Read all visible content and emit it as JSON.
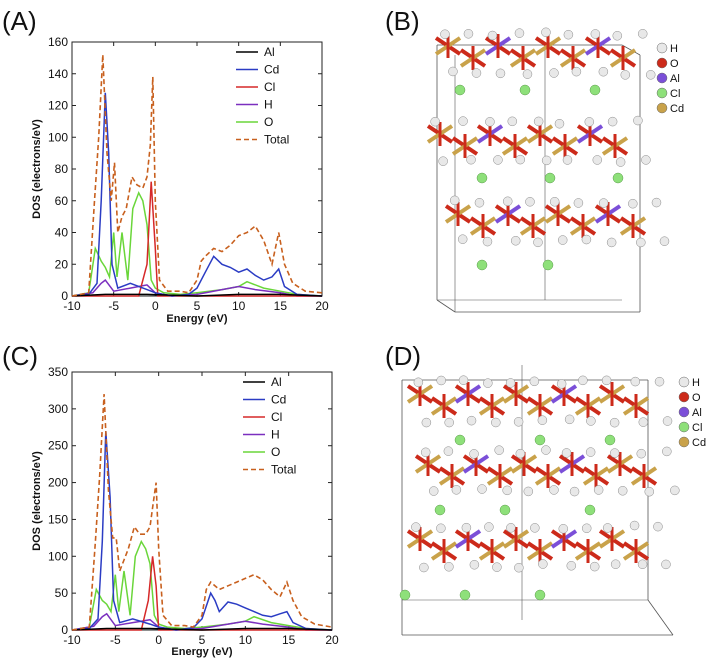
{
  "panel_labels": [
    "(A)",
    "(B)",
    "(C)",
    "(D)"
  ],
  "colors": {
    "Al": "#000000",
    "Cd": "#2b3cc4",
    "Cl": "#d62828",
    "H": "#7b2fbf",
    "O": "#6ad63a",
    "Total": "#c8601e",
    "atom_H": "#e8e8e8",
    "atom_O": "#cc2a1a",
    "atom_Al": "#7b4fd8",
    "atom_Cl": "#8ee07a",
    "atom_Cd": "#c9a24a"
  },
  "crystal_legend": [
    "H",
    "O",
    "Al",
    "Cl",
    "Cd"
  ],
  "chart_data": [
    {
      "panel": "(A)",
      "type": "line",
      "title": "",
      "xlabel": "Energy (eV)",
      "ylabel": "DOS (electrons/eV)",
      "xlim": [
        -10,
        20
      ],
      "ylim": [
        0,
        160
      ],
      "xticks": [
        -10,
        -5,
        0,
        5,
        10,
        15,
        20
      ],
      "yticks": [
        0,
        20,
        40,
        60,
        80,
        100,
        120,
        140,
        160
      ],
      "legend": [
        "Al",
        "Cd",
        "Cl",
        "H",
        "O",
        "Total"
      ],
      "series": [
        {
          "name": "Al",
          "points": [
            [
              -10,
              0
            ],
            [
              -6,
              1
            ],
            [
              -1,
              1
            ],
            [
              5,
              0
            ],
            [
              10,
              1
            ],
            [
              15,
              1
            ],
            [
              20,
              0
            ]
          ]
        },
        {
          "name": "Cd",
          "points": [
            [
              -10,
              0
            ],
            [
              -8,
              1
            ],
            [
              -7,
              8
            ],
            [
              -6.5,
              60
            ],
            [
              -6,
              128
            ],
            [
              -5.6,
              90
            ],
            [
              -5.2,
              20
            ],
            [
              -4.5,
              5
            ],
            [
              -3,
              8
            ],
            [
              -1,
              4
            ],
            [
              0,
              2
            ],
            [
              2,
              0
            ],
            [
              4,
              1
            ],
            [
              5,
              5
            ],
            [
              6,
              15
            ],
            [
              7,
              25
            ],
            [
              8,
              20
            ],
            [
              9,
              18
            ],
            [
              10,
              15
            ],
            [
              11,
              17
            ],
            [
              12,
              13
            ],
            [
              13,
              10
            ],
            [
              14,
              12
            ],
            [
              14.8,
              17
            ],
            [
              15.5,
              6
            ],
            [
              17,
              1
            ],
            [
              20,
              0
            ]
          ]
        },
        {
          "name": "Cl",
          "points": [
            [
              -10,
              0
            ],
            [
              -2,
              0
            ],
            [
              -1,
              20
            ],
            [
              -0.5,
              72
            ],
            [
              0,
              30
            ],
            [
              0.3,
              0
            ],
            [
              20,
              0
            ]
          ]
        },
        {
          "name": "H",
          "points": [
            [
              -10,
              0
            ],
            [
              -7.5,
              2
            ],
            [
              -6.5,
              8
            ],
            [
              -6,
              10
            ],
            [
              -5,
              3
            ],
            [
              -3,
              5
            ],
            [
              -2,
              6
            ],
            [
              -1,
              7
            ],
            [
              0,
              2
            ],
            [
              2,
              0
            ],
            [
              5,
              1
            ],
            [
              8,
              4
            ],
            [
              10,
              6
            ],
            [
              12,
              4
            ],
            [
              15,
              2
            ],
            [
              17,
              0
            ],
            [
              20,
              0
            ]
          ]
        },
        {
          "name": "O",
          "points": [
            [
              -10,
              0
            ],
            [
              -8,
              2
            ],
            [
              -7.2,
              30
            ],
            [
              -6.5,
              22
            ],
            [
              -6,
              18
            ],
            [
              -5.5,
              12
            ],
            [
              -5,
              40
            ],
            [
              -4.6,
              12
            ],
            [
              -4,
              40
            ],
            [
              -3.3,
              10
            ],
            [
              -2.7,
              55
            ],
            [
              -2,
              65
            ],
            [
              -1.5,
              60
            ],
            [
              -1,
              45
            ],
            [
              -0.5,
              10
            ],
            [
              0,
              5
            ],
            [
              1,
              2
            ],
            [
              3,
              1
            ],
            [
              5,
              2
            ],
            [
              8,
              4
            ],
            [
              10,
              6
            ],
            [
              11,
              9
            ],
            [
              13,
              5
            ],
            [
              15,
              3
            ],
            [
              17,
              1
            ],
            [
              20,
              0
            ]
          ]
        },
        {
          "name": "Total",
          "points": [
            [
              -10,
              0
            ],
            [
              -8,
              2
            ],
            [
              -7.3,
              60
            ],
            [
              -6.8,
              100
            ],
            [
              -6.3,
              152
            ],
            [
              -5.8,
              90
            ],
            [
              -5.3,
              60
            ],
            [
              -4.9,
              84
            ],
            [
              -4.5,
              40
            ],
            [
              -4,
              50
            ],
            [
              -3.5,
              55
            ],
            [
              -2.8,
              75
            ],
            [
              -2.2,
              70
            ],
            [
              -1.5,
              68
            ],
            [
              -1,
              75
            ],
            [
              -0.6,
              95
            ],
            [
              -0.3,
              138
            ],
            [
              0,
              60
            ],
            [
              0.5,
              10
            ],
            [
              1.5,
              3
            ],
            [
              3,
              3
            ],
            [
              4,
              2
            ],
            [
              5,
              10
            ],
            [
              5.5,
              22
            ],
            [
              6,
              25
            ],
            [
              7,
              30
            ],
            [
              8,
              28
            ],
            [
              9,
              32
            ],
            [
              10,
              38
            ],
            [
              11,
              40
            ],
            [
              12,
              44
            ],
            [
              13,
              35
            ],
            [
              14,
              20
            ],
            [
              14.8,
              40
            ],
            [
              15.5,
              20
            ],
            [
              16.5,
              8
            ],
            [
              18,
              3
            ],
            [
              20,
              2
            ]
          ]
        }
      ]
    },
    {
      "panel": "(C)",
      "type": "line",
      "title": "",
      "xlabel": "Energy (eV)",
      "ylabel": "DOS (electrons/eV)",
      "xlim": [
        -10,
        20
      ],
      "ylim": [
        0,
        350
      ],
      "xticks": [
        -10,
        -5,
        0,
        5,
        10,
        15,
        20
      ],
      "yticks": [
        0,
        50,
        100,
        150,
        200,
        250,
        300,
        350
      ],
      "legend": [
        "Al",
        "Cd",
        "Cl",
        "H",
        "O",
        "Total"
      ],
      "series": [
        {
          "name": "Al",
          "points": [
            [
              -10,
              0
            ],
            [
              -6,
              2
            ],
            [
              -1,
              2
            ],
            [
              5,
              0
            ],
            [
              10,
              2
            ],
            [
              15,
              2
            ],
            [
              20,
              0
            ]
          ]
        },
        {
          "name": "Cd",
          "points": [
            [
              -10,
              0
            ],
            [
              -8,
              2
            ],
            [
              -7,
              15
            ],
            [
              -6.5,
              120
            ],
            [
              -6.1,
              270
            ],
            [
              -5.6,
              180
            ],
            [
              -5.2,
              40
            ],
            [
              -4.5,
              10
            ],
            [
              -3,
              15
            ],
            [
              -1,
              8
            ],
            [
              0,
              4
            ],
            [
              2,
              0
            ],
            [
              4,
              3
            ],
            [
              5,
              15
            ],
            [
              6,
              50
            ],
            [
              6.5,
              40
            ],
            [
              7,
              25
            ],
            [
              8,
              38
            ],
            [
              9,
              35
            ],
            [
              10,
              30
            ],
            [
              11,
              25
            ],
            [
              12,
              20
            ],
            [
              13,
              18
            ],
            [
              14,
              22
            ],
            [
              14.8,
              25
            ],
            [
              15.5,
              10
            ],
            [
              17,
              2
            ],
            [
              20,
              0
            ]
          ]
        },
        {
          "name": "Cl",
          "points": [
            [
              -10,
              0
            ],
            [
              -2,
              0
            ],
            [
              -1.2,
              40
            ],
            [
              -0.7,
              100
            ],
            [
              -0.3,
              60
            ],
            [
              0,
              0
            ],
            [
              20,
              0
            ]
          ]
        },
        {
          "name": "H",
          "points": [
            [
              -10,
              0
            ],
            [
              -7.5,
              5
            ],
            [
              -6.5,
              18
            ],
            [
              -6,
              22
            ],
            [
              -5,
              6
            ],
            [
              -3,
              10
            ],
            [
              -2,
              12
            ],
            [
              -1,
              14
            ],
            [
              0,
              4
            ],
            [
              2,
              0
            ],
            [
              5,
              2
            ],
            [
              8,
              8
            ],
            [
              10,
              12
            ],
            [
              12,
              8
            ],
            [
              15,
              4
            ],
            [
              17,
              0
            ],
            [
              20,
              0
            ]
          ]
        },
        {
          "name": "O",
          "points": [
            [
              -10,
              0
            ],
            [
              -8,
              4
            ],
            [
              -7.2,
              55
            ],
            [
              -6.5,
              40
            ],
            [
              -6,
              35
            ],
            [
              -5.5,
              25
            ],
            [
              -5,
              75
            ],
            [
              -4.6,
              25
            ],
            [
              -4,
              80
            ],
            [
              -3.3,
              20
            ],
            [
              -2.7,
              100
            ],
            [
              -2,
              120
            ],
            [
              -1.5,
              110
            ],
            [
              -1,
              90
            ],
            [
              -0.5,
              20
            ],
            [
              0,
              8
            ],
            [
              1,
              4
            ],
            [
              3,
              2
            ],
            [
              5,
              4
            ],
            [
              8,
              8
            ],
            [
              10,
              12
            ],
            [
              11,
              18
            ],
            [
              13,
              10
            ],
            [
              15,
              6
            ],
            [
              17,
              2
            ],
            [
              20,
              0
            ]
          ]
        },
        {
          "name": "Total",
          "points": [
            [
              -10,
              0
            ],
            [
              -8,
              4
            ],
            [
              -7.3,
              120
            ],
            [
              -6.8,
              210
            ],
            [
              -6.3,
              320
            ],
            [
              -5.8,
              190
            ],
            [
              -5.3,
              125
            ],
            [
              -4.9,
              125
            ],
            [
              -4.5,
              80
            ],
            [
              -4,
              95
            ],
            [
              -3.5,
              110
            ],
            [
              -2.8,
              140
            ],
            [
              -2.2,
              130
            ],
            [
              -1.5,
              130
            ],
            [
              -1,
              140
            ],
            [
              -0.6,
              175
            ],
            [
              -0.3,
              200
            ],
            [
              0,
              110
            ],
            [
              0.5,
              20
            ],
            [
              1.5,
              6
            ],
            [
              3,
              6
            ],
            [
              4,
              4
            ],
            [
              5,
              20
            ],
            [
              5.5,
              55
            ],
            [
              6,
              65
            ],
            [
              7,
              55
            ],
            [
              8,
              60
            ],
            [
              9,
              65
            ],
            [
              10,
              70
            ],
            [
              11,
              75
            ],
            [
              12,
              68
            ],
            [
              13,
              55
            ],
            [
              14,
              45
            ],
            [
              14.8,
              65
            ],
            [
              15.5,
              40
            ],
            [
              16.5,
              18
            ],
            [
              18,
              8
            ],
            [
              20,
              4
            ]
          ]
        }
      ]
    }
  ]
}
